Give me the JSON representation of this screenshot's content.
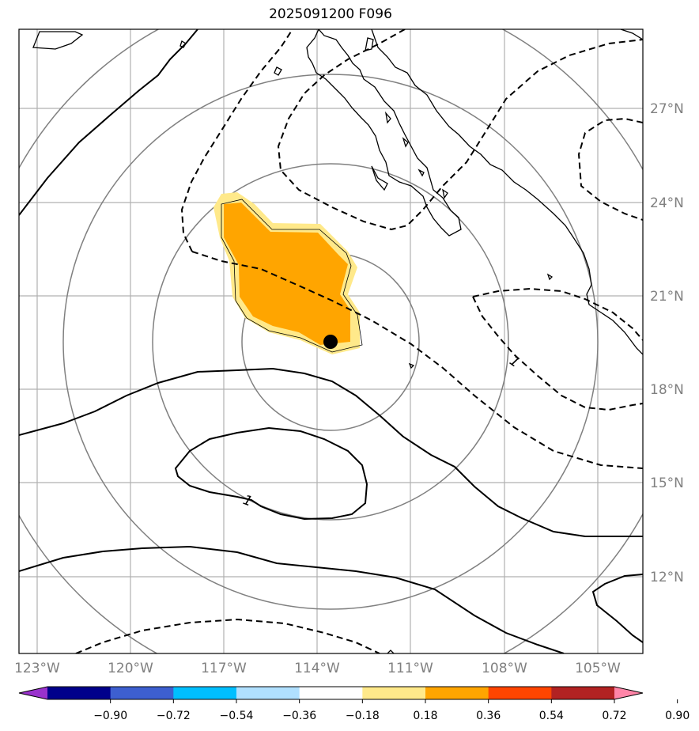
{
  "title": "2025091200 F096",
  "map": {
    "lat_labels": [
      "27°N",
      "24°N",
      "21°N",
      "18°N",
      "15°N",
      "12°N"
    ],
    "lon_labels": [
      "123°W",
      "120°W",
      "117°W",
      "114°W",
      "111°W",
      "108°W",
      "105°W"
    ],
    "contour_label": "1",
    "storm_center": {
      "lat": 19.5,
      "lon": -113.7
    },
    "colors": {
      "grid": "#b0b0b0",
      "range_rings": "#808080",
      "fill_high": "#ffa500",
      "fill_low": "#ffe98a",
      "marker": "#000000"
    }
  },
  "colorbar": {
    "ticks": [
      "−0.90",
      "−0.72",
      "−0.54",
      "−0.36",
      "−0.18",
      "0.18",
      "0.36",
      "0.54",
      "0.72",
      "0.90"
    ],
    "colors": [
      "#9932cc",
      "#00008b",
      "#3d5fd0",
      "#00bfff",
      "#b0e0ff",
      "#ffffff",
      "#ffe98a",
      "#ffa500",
      "#ff4500",
      "#b22222",
      "#ff85a8"
    ]
  }
}
